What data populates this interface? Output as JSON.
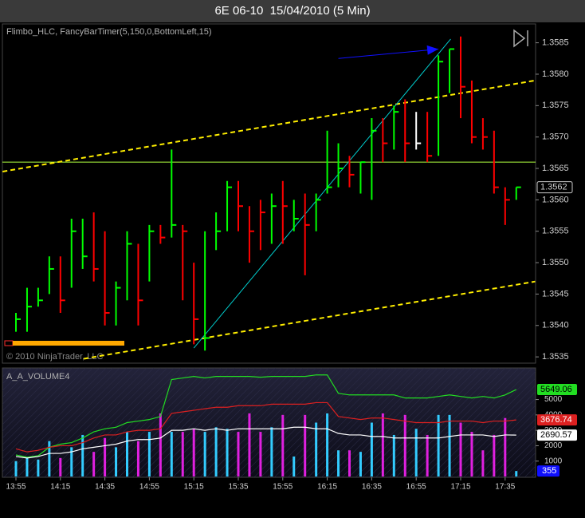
{
  "chart_data": [
    {
      "type": "hlc",
      "title": "6E 06-10  15/04/2010 (5 Min)",
      "subtitle": "Flimbo_HLC, FancyBarTimer(5,150,0,BottomLeft,15)",
      "annotation": "© 2010 NinjaTrader, LLC",
      "categories": [
        "13:55",
        null,
        null,
        null,
        "14:15",
        null,
        null,
        null,
        "14:35",
        null,
        null,
        null,
        "14:55",
        null,
        null,
        null,
        "15:15",
        null,
        null,
        null,
        "15:35",
        null,
        null,
        null,
        "15:55",
        null,
        null,
        null,
        "16:15",
        null,
        null,
        null,
        "16:35",
        null,
        null,
        null,
        "16:55",
        null,
        null,
        null,
        "17:15",
        null,
        null,
        null,
        "17:35",
        null
      ],
      "high": [
        1.3542,
        1.3546,
        1.3546,
        1.3551,
        1.3551,
        1.3557,
        1.3557,
        1.3558,
        1.3555,
        1.3547,
        1.3555,
        1.3553,
        1.3556,
        1.3556,
        1.3568,
        1.3556,
        1.355,
        1.3555,
        1.3558,
        1.3563,
        1.3563,
        1.3559,
        1.356,
        1.3561,
        1.3563,
        1.356,
        1.3561,
        1.3561,
        1.3571,
        1.3569,
        1.3567,
        1.3566,
        1.3573,
        1.3573,
        1.3575,
        1.3576,
        1.3574,
        1.3574,
        1.3583,
        1.3584,
        1.3586,
        1.3579,
        1.3573,
        1.3571,
        1.3562,
        1.3562
      ],
      "low": [
        1.3539,
        1.3539,
        1.3543,
        1.3545,
        1.3542,
        1.3546,
        1.3549,
        1.3547,
        1.354,
        1.354,
        1.3544,
        1.354,
        1.3547,
        1.3553,
        1.3554,
        1.3544,
        1.3537,
        1.3536,
        1.3552,
        1.3555,
        1.3555,
        1.355,
        1.3552,
        1.3553,
        1.3553,
        1.3555,
        1.3548,
        1.3555,
        1.3561,
        1.3562,
        1.3562,
        1.3561,
        1.356,
        1.3566,
        1.3568,
        1.3566,
        1.3568,
        1.3566,
        1.3567,
        1.3577,
        1.3573,
        1.3569,
        1.3568,
        1.3561,
        1.3556,
        1.356
      ],
      "close": [
        1.3541,
        1.3543,
        1.3544,
        1.3549,
        1.3544,
        1.3555,
        1.3551,
        1.3549,
        1.3542,
        1.3546,
        1.3553,
        1.3544,
        1.3555,
        1.3554,
        1.3556,
        1.3555,
        1.3541,
        1.3538,
        1.3555,
        1.3562,
        1.3559,
        1.3555,
        1.3558,
        1.3559,
        1.3559,
        1.3557,
        1.3556,
        1.356,
        1.3562,
        1.3565,
        1.3564,
        1.3566,
        1.3571,
        1.3569,
        1.3574,
        1.3569,
        1.3569,
        1.3567,
        1.3582,
        1.3584,
        1.3578,
        1.357,
        1.357,
        1.3562,
        1.356,
        1.3562
      ],
      "colors": [
        "#00ff00",
        "#00ff00",
        "#00ff00",
        "#00ff00",
        "#ff0000",
        "#00ff00",
        "#00ff00",
        "#ff0000",
        "#ff0000",
        "#00ff00",
        "#00ff00",
        "#ff0000",
        "#00ff00",
        "#ff0000",
        "#00ff00",
        "#ff0000",
        "#ff0000",
        "#00ff00",
        "#00ff00",
        "#00ff00",
        "#ff0000",
        "#ff0000",
        "#ff0000",
        "#00ff00",
        "#ff0000",
        "#00ff00",
        "#ff0000",
        "#00ff00",
        "#00ff00",
        "#00ff00",
        "#ff0000",
        "#00ff00",
        "#00ff00",
        "#ff0000",
        "#00ff00",
        "#ff0000",
        "#ffffff",
        "#ff0000",
        "#00ff00",
        "#00ff00",
        "#ff0000",
        "#ff0000",
        "#ff0000",
        "#ff0000",
        "#ff0000",
        "#00ff00"
      ],
      "ylim": [
        1.3534,
        1.3588
      ],
      "yticks": [
        1.3535,
        {
          "value": 1.354,
          "label": "1.3540"
        },
        1.3545,
        {
          "value": 1.355,
          "label": "1.3550"
        },
        1.3555,
        {
          "value": 1.356,
          "label": "1.3560"
        },
        1.3565,
        {
          "value": 1.357,
          "label": "1.3570"
        },
        1.3575,
        {
          "value": 1.358,
          "label": "1.3580"
        },
        1.3585
      ],
      "hline": {
        "value": 1.3566,
        "color": "#b0ff40"
      },
      "trendlines": [
        {
          "color": "#ffee00",
          "dashed": true,
          "x": [
            -1.2,
            46.7
          ],
          "y": [
            1.35645,
            1.3579
          ]
        },
        {
          "color": "#ffee00",
          "dashed": true,
          "x": [
            6.1,
            46.7
          ],
          "y": [
            1.35347,
            1.3547
          ]
        },
        {
          "color": "#00cccc",
          "dashed": false,
          "x": [
            16,
            39.1
          ],
          "y": [
            1.35364,
            1.35856
          ]
        },
        {
          "color": "#1010ff",
          "dashed": false,
          "arrow": true,
          "x": [
            29,
            38
          ],
          "y": [
            1.35825,
            1.3584
          ]
        }
      ]
    },
    {
      "type": "volume",
      "title": "A_A_VOLUME4",
      "values": [
        1000,
        1200,
        1100,
        2300,
        1200,
        1900,
        2700,
        1600,
        2500,
        1900,
        2900,
        2300,
        2900,
        4100,
        2900,
        2900,
        3100,
        2900,
        3200,
        3100,
        2900,
        4100,
        2900,
        3200,
        4000,
        1300,
        4000,
        3500,
        4100,
        1700,
        1700,
        1600,
        3500,
        4100,
        2700,
        4000,
        3100,
        2700,
        4000,
        4000,
        3500,
        2900,
        1700,
        2700,
        3800,
        355
      ],
      "colors": [
        "#33ccff",
        "#33ccff",
        "#33ccff",
        "#33ccff",
        "#e020e0",
        "#33ccff",
        "#33ccff",
        "#e020e0",
        "#e020e0",
        "#33ccff",
        "#33ccff",
        "#e020e0",
        "#33ccff",
        "#e020e0",
        "#33ccff",
        "#e020e0",
        "#e020e0",
        "#33ccff",
        "#33ccff",
        "#33ccff",
        "#e020e0",
        "#e020e0",
        "#e020e0",
        "#33ccff",
        "#e020e0",
        "#33ccff",
        "#e020e0",
        "#33ccff",
        "#33ccff",
        "#33ccff",
        "#e020e0",
        "#33ccff",
        "#33ccff",
        "#e020e0",
        "#33ccff",
        "#e020e0",
        "#33ccff",
        "#e020e0",
        "#33ccff",
        "#33ccff",
        "#e020e0",
        "#e020e0",
        "#e020e0",
        "#e020e0",
        "#e020e0",
        "#33ccff"
      ],
      "last_color": "#1010ff",
      "series": [
        {
          "color": "#22dd22",
          "values": [
            1400,
            1250,
            1350,
            1900,
            2100,
            2200,
            2500,
            2900,
            3100,
            3200,
            3500,
            3600,
            3700,
            3900,
            6300,
            6400,
            6500,
            6400,
            6500,
            6500,
            6500,
            6500,
            6450,
            6500,
            6500,
            6500,
            6500,
            6600,
            6600,
            5400,
            5300,
            5300,
            5300,
            5300,
            5300,
            5100,
            5100,
            5100,
            5200,
            5300,
            5200,
            5100,
            5200,
            5100,
            5300,
            5649.06
          ]
        },
        {
          "color": "#dd2020",
          "values": [
            1800,
            1600,
            1700,
            1900,
            2000,
            2000,
            2200,
            2500,
            2700,
            2700,
            2900,
            3000,
            3000,
            3100,
            4100,
            4200,
            4300,
            4400,
            4500,
            4500,
            4600,
            4600,
            4600,
            4700,
            4700,
            4700,
            4700,
            4800,
            4800,
            3900,
            3800,
            3700,
            3800,
            3800,
            3700,
            3600,
            3500,
            3500,
            3500,
            3600,
            3600,
            3600,
            3500,
            3600,
            3600,
            3676.74
          ]
        },
        {
          "color": "#ffffff",
          "values": [
            1300,
            1200,
            1300,
            1500,
            1500,
            1600,
            1800,
            1900,
            2000,
            2100,
            2300,
            2400,
            2400,
            2500,
            3000,
            3000,
            3100,
            3000,
            3100,
            3000,
            3100,
            3100,
            3100,
            3100,
            3100,
            3200,
            3200,
            3100,
            3100,
            2800,
            2700,
            2700,
            2600,
            2600,
            2500,
            2500,
            2500,
            2500,
            2500,
            2600,
            2700,
            2700,
            2700,
            2600,
            2700,
            2690.57
          ]
        }
      ],
      "ylim": [
        0,
        7000
      ],
      "yticks": [
        1000,
        2000,
        3000,
        4000,
        5000
      ]
    }
  ]
}
